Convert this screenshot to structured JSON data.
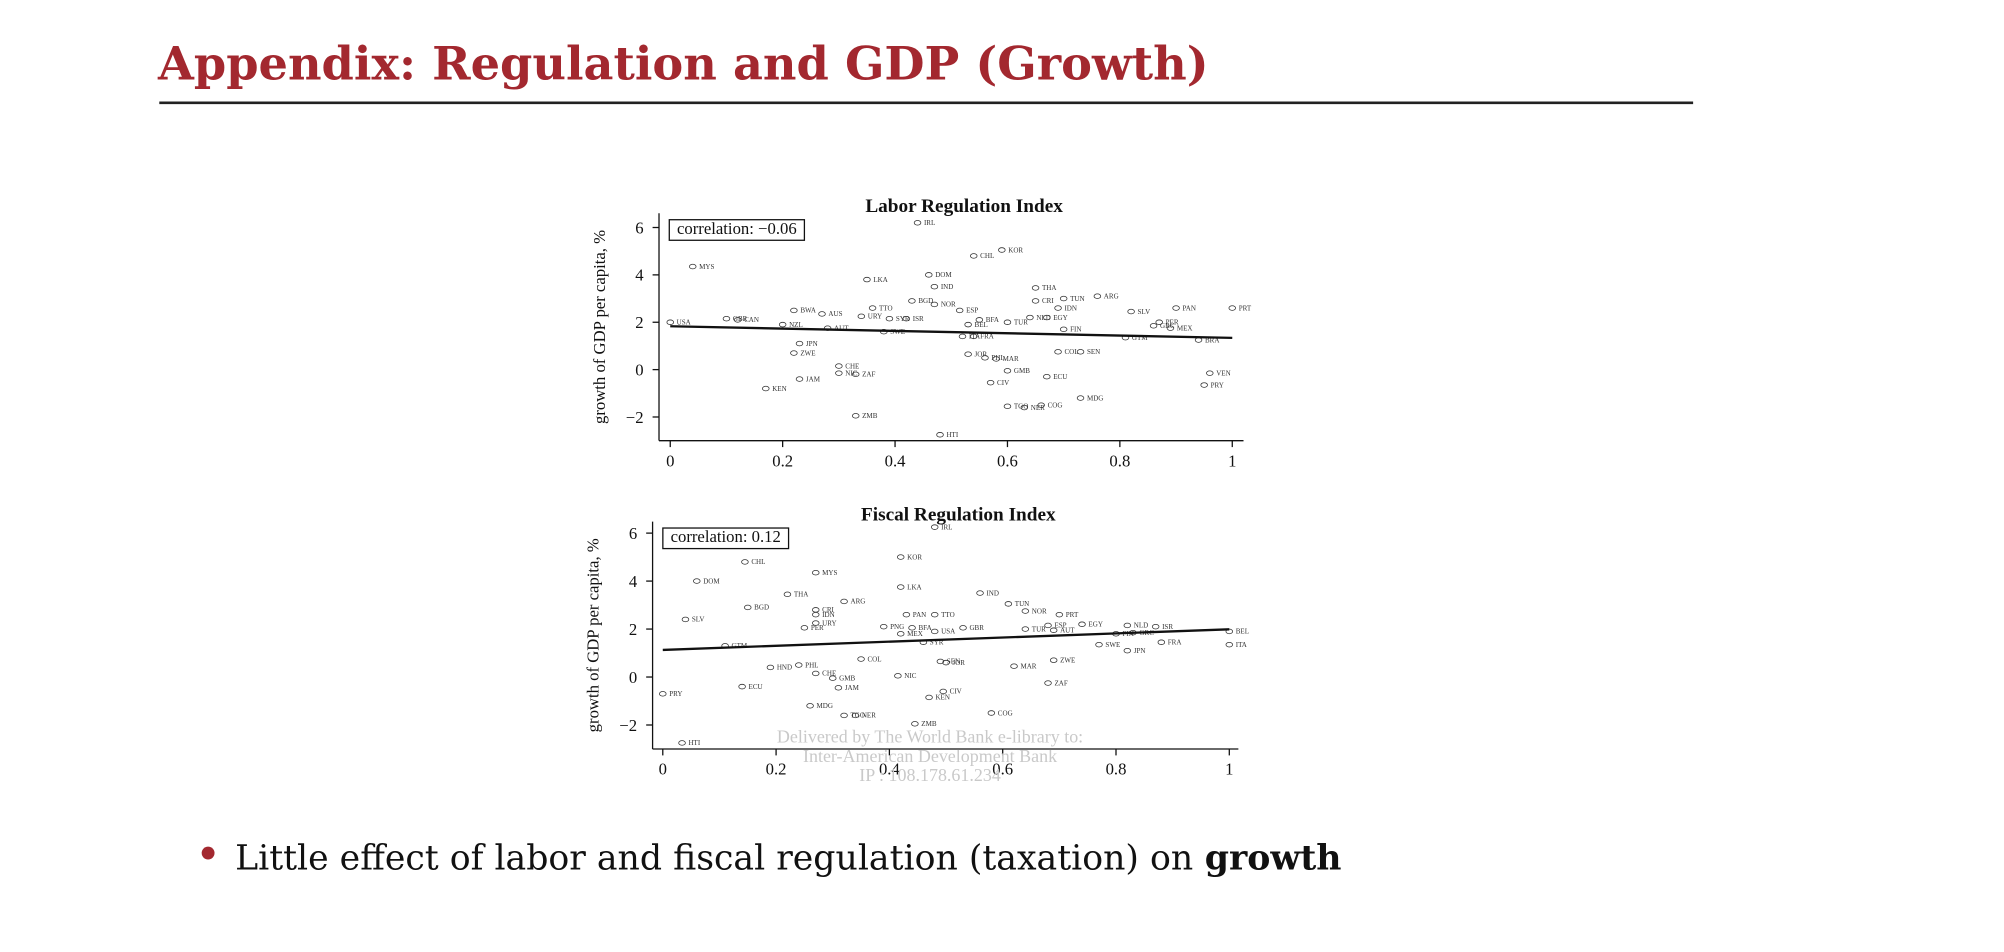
{
  "slide": {
    "title": "Appendix: Regulation and GDP (Growth)",
    "bullet": {
      "text": "Little effect of labor and fiscal regulation (taxation) on",
      "emphasis": "growth"
    },
    "watermark": [
      "Delivered by The World Bank e-library to:",
      "Inter-American Development Bank",
      "IP : 108.178.61.234"
    ]
  },
  "chart_data": [
    {
      "type": "scatter",
      "title": "Labor Regulation Index",
      "y_label": "growth of GDP per capita, %",
      "annotation": "correlation: −0.06",
      "xlim": [
        -0.02,
        1.02
      ],
      "ylim": [
        -3,
        6.6
      ],
      "xticks": [
        0,
        0.2,
        0.4,
        0.6,
        0.8,
        1
      ],
      "yticks": [
        {
          "value": -2,
          "label": "−2"
        },
        0,
        2,
        4,
        6
      ],
      "point_labels": [
        "IRL",
        "KOR",
        "CHL",
        "MYS",
        "DOM",
        "LKA",
        "IND",
        "THA",
        "ARG",
        "TUN",
        "CRI",
        "BGD",
        "NOR",
        "IDN",
        "TTO",
        "PAN",
        "PRT",
        "BWA",
        "ESP",
        "SLV",
        "AUS",
        "URY",
        "SYR",
        "ISR",
        "EGY",
        "NLD",
        "GBR",
        "CAN",
        "BFA",
        "TUR",
        "USA",
        "PER",
        "GRC",
        "BEL",
        "NZL",
        "MEX",
        "AUT",
        "FIN",
        "SWE",
        "ITA",
        "FRA",
        "GTM",
        "BRA",
        "JPN",
        "COL",
        "SEN",
        "ZWE",
        "JOR",
        "PHL",
        "MAR",
        "CHE",
        "GMB",
        "NIC",
        "ZAF",
        "VEN",
        "ECU",
        "JAM",
        "CIV",
        "PRY",
        "KEN",
        "MDG",
        "COG",
        "TGO",
        "NER",
        "ZMB",
        "HTI"
      ],
      "x": [
        0.44,
        0.59,
        0.54,
        0.04,
        0.46,
        0.35,
        0.47,
        0.65,
        0.76,
        0.7,
        0.65,
        0.43,
        0.47,
        0.69,
        0.36,
        0.9,
        1.0,
        0.22,
        0.515,
        0.82,
        0.27,
        0.34,
        0.39,
        0.42,
        0.67,
        0.64,
        0.1,
        0.12,
        0.55,
        0.6,
        0,
        0.87,
        0.86,
        0.53,
        0.2,
        0.89,
        0.28,
        0.7,
        0.38,
        0.52,
        0.54,
        0.81,
        0.94,
        0.23,
        0.69,
        0.73,
        0.22,
        0.53,
        0.56,
        0.58,
        0.3,
        0.6,
        0.3,
        0.33,
        0.96,
        0.67,
        0.23,
        0.57,
        0.95,
        0.17,
        0.73,
        0.66,
        0.6,
        0.63,
        0.33,
        0.48
      ],
      "values": [
        6.2,
        5.05,
        4.8,
        4.35,
        4.0,
        3.8,
        3.5,
        3.45,
        3.1,
        3.0,
        2.9,
        2.9,
        2.75,
        2.6,
        2.6,
        2.6,
        2.6,
        2.5,
        2.5,
        2.45,
        2.35,
        2.25,
        2.15,
        2.15,
        2.2,
        2.2,
        2.15,
        2.1,
        2.1,
        2.0,
        2.0,
        2.0,
        1.85,
        1.9,
        1.9,
        1.75,
        1.75,
        1.7,
        1.6,
        1.4,
        1.4,
        1.35,
        1.25,
        1.1,
        0.75,
        0.75,
        0.7,
        0.65,
        0.5,
        0.45,
        0.15,
        -0.05,
        -0.15,
        -0.2,
        -0.15,
        -0.3,
        -0.4,
        -0.55,
        -0.65,
        -0.8,
        -1.2,
        -1.5,
        -1.55,
        -1.6,
        -1.95,
        -2.75
      ],
      "fit": {
        "x": [
          0,
          1
        ],
        "values": [
          1.83,
          1.34
        ]
      }
    },
    {
      "type": "scatter",
      "title": "Fiscal Regulation Index",
      "y_label": "growth of GDP per capita, %",
      "annotation": "correlation: 0.12",
      "xlim": [
        -0.018,
        1.016
      ],
      "ylim": [
        -3,
        6.48
      ],
      "xticks": [
        0,
        0.2,
        0.4,
        0.6,
        0.8,
        1
      ],
      "yticks": [
        {
          "value": -2,
          "label": "−2"
        },
        0,
        2,
        4,
        6
      ],
      "point_labels": [
        "IRL",
        "KOR",
        "CHL",
        "MYS",
        "DOM",
        "LKA",
        "IND",
        "THA",
        "ARG",
        "TUN",
        "BGD",
        "CRI",
        "NOR",
        "IDN",
        "PRT",
        "TTO",
        "PAN",
        "SLV",
        "URY",
        "EGY",
        "ESP",
        "NLD",
        "ISR",
        "PNG",
        "BFA",
        "PER",
        "GBR",
        "TUR",
        "USA",
        "AUT",
        "BEL",
        "MEX",
        "FIN",
        "GRC",
        "SWE",
        "FRA",
        "ITA",
        "JPN",
        "SYR",
        "GTM",
        "COL",
        "SEN",
        "JOR",
        "PHL",
        "HND",
        "MAR",
        "ZWE",
        "CHE",
        "NIC",
        "GMB",
        "ZAF",
        "JAM",
        "ECU",
        "PRY",
        "CIV",
        "KEN",
        "MDG",
        "COG",
        "TGO",
        "NER",
        "ZMB",
        "HTI"
      ],
      "x": [
        0.48,
        0.42,
        0.145,
        0.27,
        0.06,
        0.42,
        0.56,
        0.22,
        0.32,
        0.61,
        0.15,
        0.27,
        0.64,
        0.27,
        0.7,
        0.48,
        0.43,
        0.04,
        0.27,
        0.74,
        0.68,
        0.82,
        0.87,
        0.39,
        0.44,
        0.25,
        0.53,
        0.64,
        0.48,
        0.69,
        1.0,
        0.42,
        0.8,
        0.83,
        0.77,
        0.88,
        1.0,
        0.82,
        0.46,
        0.11,
        0.35,
        0.49,
        0.5,
        0.24,
        0.19,
        0.62,
        0.69,
        0.27,
        0.415,
        0.3,
        0.68,
        0.31,
        0.14,
        0,
        0.495,
        0.47,
        0.26,
        0.58,
        0.32,
        0.34,
        0.445,
        0.034
      ],
      "values": [
        6.25,
        5.0,
        4.8,
        4.35,
        4.0,
        3.75,
        3.5,
        3.45,
        3.15,
        3.05,
        2.9,
        2.8,
        2.75,
        2.6,
        2.6,
        2.6,
        2.6,
        2.4,
        2.25,
        2.2,
        2.15,
        2.15,
        2.1,
        2.1,
        2.05,
        2.05,
        2.05,
        2.0,
        1.9,
        1.95,
        1.9,
        1.8,
        1.8,
        1.85,
        1.35,
        1.45,
        1.35,
        1.1,
        1.45,
        1.3,
        0.75,
        0.65,
        0.6,
        0.5,
        0.4,
        0.45,
        0.7,
        0.15,
        0.05,
        -0.05,
        -0.25,
        -0.45,
        -0.4,
        -0.7,
        -0.6,
        -0.85,
        -1.2,
        -1.5,
        -1.6,
        -1.6,
        -1.95,
        -2.75
      ],
      "fit": {
        "x": [
          0,
          1
        ],
        "values": [
          1.13,
          1.99
        ]
      }
    }
  ]
}
